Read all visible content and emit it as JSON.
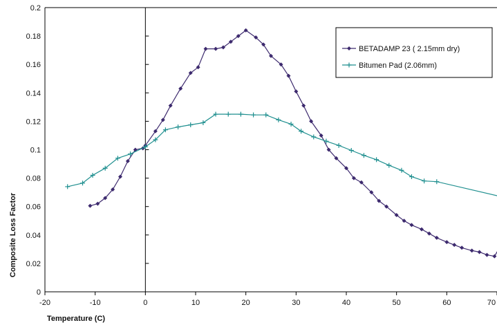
{
  "chart_data": {
    "type": "line",
    "title": "",
    "xlabel": "Temperature (C)",
    "ylabel": "Composite Loss Factor",
    "xlim": [
      -20,
      70
    ],
    "ylim": [
      0,
      0.2
    ],
    "xticks": [
      -20,
      -10,
      0,
      10,
      20,
      30,
      40,
      50,
      60,
      70
    ],
    "xtick_labels": [
      "-20",
      "-10",
      "0",
      "10",
      "20",
      "30",
      "40",
      "50",
      "60",
      "70"
    ],
    "yticks": [
      0,
      0.02,
      0.04,
      0.06,
      0.08,
      0.1,
      0.12,
      0.14,
      0.16,
      0.18,
      0.2
    ],
    "ytick_labels": [
      "0",
      "0.02",
      "0.04",
      "0.06",
      "0.08",
      "0.1",
      "0.12",
      "0.14",
      "0.16",
      "0.18",
      "0.2"
    ],
    "grid": false,
    "legend_position": "top-right",
    "series": [
      {
        "name": "BETADAMP 23 ( 2.15mm dry)",
        "color": "#3d2a6e",
        "marker": "diamond",
        "x": [
          -11,
          -9.5,
          -8,
          -6.5,
          -5,
          -3.5,
          -2,
          -0.5,
          0,
          2,
          3.5,
          5,
          7,
          9,
          10.5,
          12,
          14,
          15.5,
          17,
          18.5,
          20,
          22,
          23.5,
          25,
          27,
          28.5,
          30,
          31.5,
          33,
          35,
          36.5,
          38,
          40,
          41.5,
          43,
          45,
          46.5,
          48,
          50,
          51.5,
          53,
          55,
          56.5,
          58,
          60,
          61.5,
          63,
          65,
          66.5,
          68,
          69.5,
          71
        ],
        "y": [
          0.0605,
          0.062,
          0.066,
          0.072,
          0.081,
          0.092,
          0.1,
          0.101,
          0.103,
          0.113,
          0.121,
          0.131,
          0.143,
          0.154,
          0.158,
          0.171,
          0.171,
          0.172,
          0.176,
          0.18,
          0.184,
          0.179,
          0.174,
          0.166,
          0.16,
          0.152,
          0.141,
          0.131,
          0.12,
          0.11,
          0.1,
          0.094,
          0.087,
          0.08,
          0.077,
          0.07,
          0.064,
          0.06,
          0.054,
          0.05,
          0.047,
          0.044,
          0.041,
          0.038,
          0.035,
          0.033,
          0.031,
          0.029,
          0.028,
          0.026,
          0.025,
          0.034
        ]
      },
      {
        "name": "Bitumen Pad (2.06mm)",
        "color": "#1f8f8f",
        "marker": "plus",
        "x": [
          -15.5,
          -12.5,
          -10.5,
          -8,
          -5.5,
          -3,
          0,
          2,
          4,
          6.5,
          9,
          11.5,
          14,
          16.5,
          19,
          21.5,
          24,
          26.5,
          29,
          31,
          33.5,
          36,
          38.5,
          41,
          43.5,
          46,
          48.5,
          51,
          53,
          55.5,
          58,
          72
        ],
        "y": [
          0.074,
          0.0765,
          0.082,
          0.087,
          0.094,
          0.097,
          0.102,
          0.107,
          0.114,
          0.116,
          0.1175,
          0.119,
          0.125,
          0.125,
          0.125,
          0.1245,
          0.1245,
          0.121,
          0.118,
          0.113,
          0.109,
          0.106,
          0.103,
          0.0995,
          0.096,
          0.093,
          0.089,
          0.0855,
          0.081,
          0.078,
          0.0775,
          0.066
        ]
      }
    ]
  }
}
